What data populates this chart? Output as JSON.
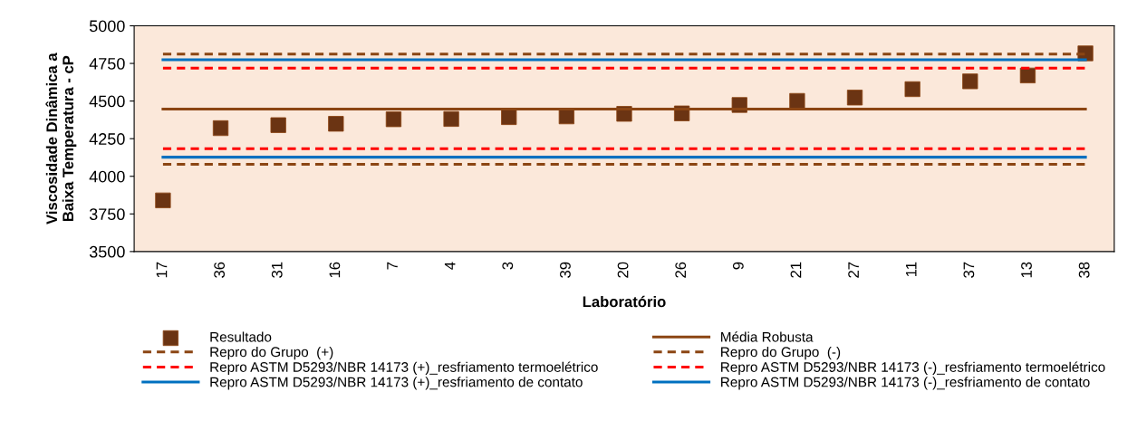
{
  "chart_data": {
    "type": "scatter",
    "xlabel": "Laboratório",
    "ylabel": "Viscosidade Dinâmica a\nBaixa Temperatura - cP",
    "categories": [
      "17",
      "36",
      "31",
      "16",
      "7",
      "4",
      "3",
      "39",
      "20",
      "26",
      "9",
      "21",
      "27",
      "11",
      "37",
      "13",
      "38"
    ],
    "ylim": [
      3500,
      5000
    ],
    "yticks": [
      3500,
      3750,
      4000,
      4250,
      4500,
      4750,
      5000
    ],
    "grid": false,
    "legend": "bottom",
    "series": [
      {
        "name": "Resultado",
        "marker": "square",
        "color": "#6b3413",
        "values": [
          3840,
          4320,
          4340,
          4349,
          4379,
          4381,
          4393,
          4398,
          4415,
          4418,
          4474,
          4501,
          4523,
          4579,
          4631,
          4670,
          4817
        ]
      },
      {
        "name": "Média Robusta",
        "type": "line",
        "line_style": "solid",
        "color": "#8b4513",
        "values": [
          4447,
          4447,
          4447,
          4447,
          4447,
          4447,
          4447,
          4447,
          4447,
          4447,
          4447,
          4447,
          4447,
          4447,
          4447,
          4447,
          4447
        ]
      },
      {
        "name": "Repro do Grupo  (+)",
        "type": "line",
        "line_style": "dashed",
        "color": "#8b4513",
        "values": [
          4812,
          4812,
          4812,
          4812,
          4812,
          4812,
          4812,
          4812,
          4812,
          4812,
          4812,
          4812,
          4812,
          4812,
          4812,
          4812,
          4812
        ]
      },
      {
        "name": "Repro do Grupo  (-)",
        "type": "line",
        "line_style": "dashed",
        "color": "#8b4513",
        "values": [
          4080,
          4080,
          4080,
          4080,
          4080,
          4080,
          4080,
          4080,
          4080,
          4080,
          4080,
          4080,
          4080,
          4080,
          4080,
          4080,
          4080
        ]
      },
      {
        "name": "Repro ASTM D5293/NBR 14173 (+)_resfriamento termoelétrico",
        "type": "line",
        "line_style": "dashed",
        "color": "#ff0000",
        "values": [
          4719,
          4719,
          4719,
          4719,
          4719,
          4719,
          4719,
          4719,
          4719,
          4719,
          4719,
          4719,
          4719,
          4719,
          4719,
          4719,
          4719
        ]
      },
      {
        "name": "Repro ASTM D5293/NBR 14173 (-)_resfriamento termoelétrico",
        "type": "line",
        "line_style": "dashed",
        "color": "#ff0000",
        "values": [
          4183,
          4183,
          4183,
          4183,
          4183,
          4183,
          4183,
          4183,
          4183,
          4183,
          4183,
          4183,
          4183,
          4183,
          4183,
          4183,
          4183
        ]
      },
      {
        "name": "Repro ASTM D5293/NBR 14173 (+)_resfriamento de contato",
        "type": "line",
        "line_style": "solid",
        "color": "#0070c0",
        "values": [
          4775,
          4775,
          4775,
          4775,
          4775,
          4775,
          4775,
          4775,
          4775,
          4775,
          4775,
          4775,
          4775,
          4775,
          4775,
          4775,
          4775
        ]
      },
      {
        "name": "Repro ASTM D5293/NBR 14173 (-)_resfriamento de contato",
        "type": "line",
        "line_style": "solid",
        "color": "#0070c0",
        "values": [
          4127,
          4127,
          4127,
          4127,
          4127,
          4127,
          4127,
          4127,
          4127,
          4127,
          4127,
          4127,
          4127,
          4127,
          4127,
          4127,
          4127
        ]
      }
    ]
  }
}
